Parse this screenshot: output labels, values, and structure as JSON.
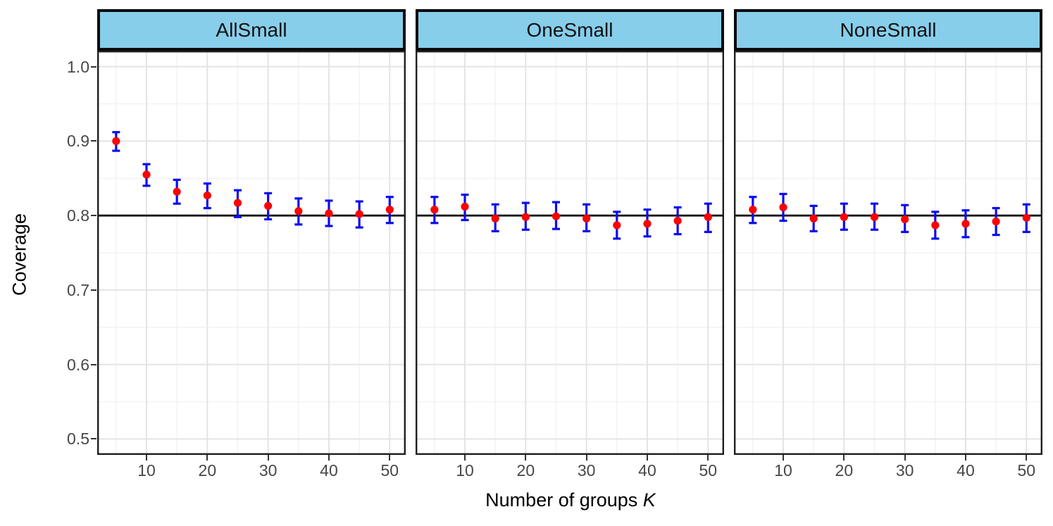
{
  "chart_data": {
    "type": "scatter",
    "subtype": "faceted-points-with-errorbars",
    "ylabel": "Coverage",
    "xlabel_text": "Number of groups",
    "xlabel_var": "K",
    "reference_line_y": 0.8,
    "xlim": [
      1.89,
      52.63
    ],
    "ylim": [
      0.4786,
      1.0214
    ],
    "x_tick_values": [
      10,
      20,
      30,
      40,
      50
    ],
    "x_tick_labels": [
      "10",
      "20",
      "30",
      "40",
      "50"
    ],
    "y_tick_values": [
      1.0,
      0.9,
      0.8,
      0.7,
      0.6,
      0.5
    ],
    "y_tick_labels": [
      "1.0",
      "0.9",
      "0.8",
      "0.7",
      "0.6",
      "0.5"
    ],
    "x_minor_gridlines": [
      5,
      15,
      25,
      35,
      45
    ],
    "y_minor_gridlines": [
      0.95,
      0.85,
      0.75,
      0.65,
      0.55
    ],
    "grid": true,
    "legend": "none",
    "facets": [
      {
        "label": "AllSmall",
        "points": [
          {
            "k": 5,
            "y": 0.9,
            "lo": 0.887,
            "hi": 0.912
          },
          {
            "k": 10,
            "y": 0.855,
            "lo": 0.84,
            "hi": 0.869
          },
          {
            "k": 15,
            "y": 0.832,
            "lo": 0.816,
            "hi": 0.848
          },
          {
            "k": 20,
            "y": 0.827,
            "lo": 0.81,
            "hi": 0.843
          },
          {
            "k": 25,
            "y": 0.817,
            "lo": 0.798,
            "hi": 0.834
          },
          {
            "k": 30,
            "y": 0.813,
            "lo": 0.795,
            "hi": 0.83
          },
          {
            "k": 35,
            "y": 0.806,
            "lo": 0.788,
            "hi": 0.823
          },
          {
            "k": 40,
            "y": 0.803,
            "lo": 0.786,
            "hi": 0.82
          },
          {
            "k": 45,
            "y": 0.802,
            "lo": 0.784,
            "hi": 0.819
          },
          {
            "k": 50,
            "y": 0.808,
            "lo": 0.79,
            "hi": 0.825
          }
        ]
      },
      {
        "label": "OneSmall",
        "points": [
          {
            "k": 5,
            "y": 0.808,
            "lo": 0.79,
            "hi": 0.825
          },
          {
            "k": 10,
            "y": 0.812,
            "lo": 0.794,
            "hi": 0.828
          },
          {
            "k": 15,
            "y": 0.796,
            "lo": 0.779,
            "hi": 0.815
          },
          {
            "k": 20,
            "y": 0.798,
            "lo": 0.781,
            "hi": 0.817
          },
          {
            "k": 25,
            "y": 0.799,
            "lo": 0.782,
            "hi": 0.818
          },
          {
            "k": 30,
            "y": 0.796,
            "lo": 0.779,
            "hi": 0.815
          },
          {
            "k": 35,
            "y": 0.787,
            "lo": 0.769,
            "hi": 0.805
          },
          {
            "k": 40,
            "y": 0.789,
            "lo": 0.772,
            "hi": 0.808
          },
          {
            "k": 45,
            "y": 0.793,
            "lo": 0.775,
            "hi": 0.811
          },
          {
            "k": 50,
            "y": 0.798,
            "lo": 0.778,
            "hi": 0.816
          }
        ]
      },
      {
        "label": "NoneSmall",
        "points": [
          {
            "k": 5,
            "y": 0.808,
            "lo": 0.79,
            "hi": 0.825
          },
          {
            "k": 10,
            "y": 0.811,
            "lo": 0.793,
            "hi": 0.829
          },
          {
            "k": 15,
            "y": 0.796,
            "lo": 0.779,
            "hi": 0.813
          },
          {
            "k": 20,
            "y": 0.798,
            "lo": 0.781,
            "hi": 0.816
          },
          {
            "k": 25,
            "y": 0.798,
            "lo": 0.781,
            "hi": 0.816
          },
          {
            "k": 30,
            "y": 0.795,
            "lo": 0.778,
            "hi": 0.814
          },
          {
            "k": 35,
            "y": 0.787,
            "lo": 0.769,
            "hi": 0.805
          },
          {
            "k": 40,
            "y": 0.789,
            "lo": 0.771,
            "hi": 0.807
          },
          {
            "k": 45,
            "y": 0.792,
            "lo": 0.774,
            "hi": 0.81
          },
          {
            "k": 50,
            "y": 0.797,
            "lo": 0.778,
            "hi": 0.815
          }
        ]
      }
    ],
    "style": {
      "point_color": "#ff0000",
      "errorbar_color": "#0c0cee",
      "strip_fill": "#87ceeb",
      "strip_border": "#0a0a0a",
      "panel_border": "#1f1f1f",
      "reference_line_color": "#000000",
      "major_grid_color": "#e4e4e4",
      "minor_grid_color": "#f1f1f1",
      "tick_text_color": "#474747"
    }
  }
}
